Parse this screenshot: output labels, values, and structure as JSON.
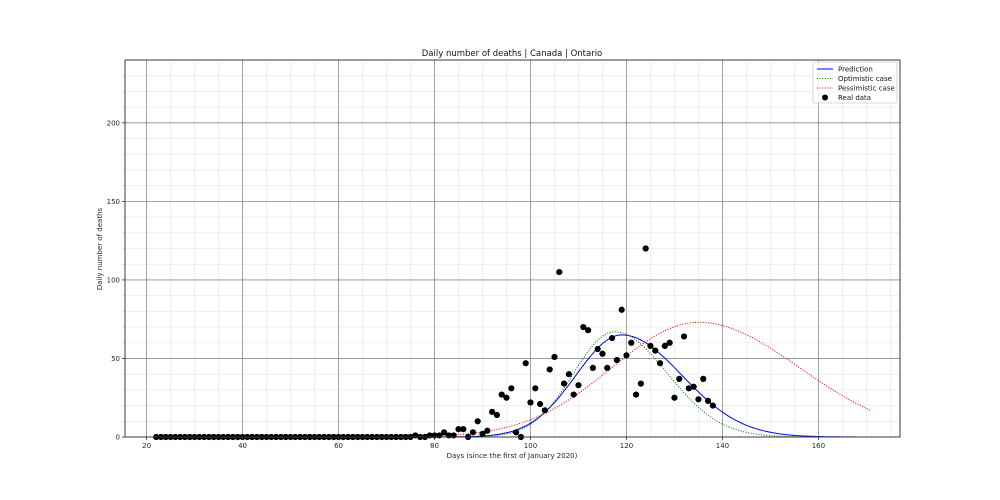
{
  "chart_data": {
    "type": "line",
    "title": "Daily number of deaths | Canada | Ontario",
    "xlabel": "Days (since the first of January 2020)",
    "ylabel": "Daily number of deaths",
    "xlim": [
      15.5,
      177
    ],
    "ylim": [
      0,
      240
    ],
    "xticks": [
      20,
      40,
      60,
      80,
      100,
      120,
      140,
      160
    ],
    "yticks": [
      0,
      50,
      100,
      150,
      200
    ],
    "grid": {
      "major": true,
      "minor": true
    },
    "legend_position": "upper right",
    "legend": [
      {
        "label": "Prediction",
        "style": "solid",
        "color": "#0000ff"
      },
      {
        "label": "Optimistic case",
        "style": "dotted",
        "color": "#008000"
      },
      {
        "label": "Pessimistic case",
        "style": "dotted",
        "color": "#ff0000"
      },
      {
        "label": "Real data",
        "style": "marker",
        "color": "#000000"
      }
    ],
    "series": [
      {
        "name": "Prediction",
        "type": "line",
        "color": "#0000ff",
        "model": {
          "peak_day": 119,
          "peak_value": 65,
          "sigma_left": 9.5,
          "sigma_right": 12.5
        },
        "x_range": [
          22,
          171
        ]
      },
      {
        "name": "Optimistic case",
        "type": "line",
        "color": "#008000",
        "model": {
          "peak_day": 117.5,
          "peak_value": 67,
          "sigma_left": 8.5,
          "sigma_right": 11
        },
        "x_range": [
          22,
          171
        ]
      },
      {
        "name": "Pessimistic case",
        "type": "line",
        "color": "#ff0000",
        "model": {
          "peak_day": 135,
          "peak_value": 73,
          "sigma_left": 18,
          "sigma_right": 21
        },
        "x_range": [
          22,
          171
        ]
      },
      {
        "name": "Real data",
        "type": "scatter",
        "color": "#000000",
        "x": [
          22,
          23,
          24,
          25,
          26,
          27,
          28,
          29,
          30,
          31,
          32,
          33,
          34,
          35,
          36,
          37,
          38,
          39,
          40,
          41,
          42,
          43,
          44,
          45,
          46,
          47,
          48,
          49,
          50,
          51,
          52,
          53,
          54,
          55,
          56,
          57,
          58,
          59,
          60,
          61,
          62,
          63,
          64,
          65,
          66,
          67,
          68,
          69,
          70,
          71,
          72,
          73,
          74,
          75,
          76,
          77,
          78,
          79,
          80,
          81,
          82,
          83,
          84,
          85,
          86,
          87,
          88,
          89,
          90,
          91,
          92,
          93,
          94,
          95,
          96,
          97,
          98,
          99,
          100,
          101,
          102,
          103,
          104,
          105,
          106,
          107,
          108,
          109,
          110,
          111,
          112,
          113,
          114,
          115,
          116,
          117,
          118,
          119,
          120,
          121,
          122,
          123,
          124,
          125,
          126,
          127,
          128,
          129,
          130,
          131,
          132,
          133,
          134,
          135,
          136,
          137,
          138
        ],
        "y": [
          0,
          0,
          0,
          0,
          0,
          0,
          0,
          0,
          0,
          0,
          0,
          0,
          0,
          0,
          0,
          0,
          0,
          0,
          0,
          0,
          0,
          0,
          0,
          0,
          0,
          0,
          0,
          0,
          0,
          0,
          0,
          0,
          0,
          0,
          0,
          0,
          0,
          0,
          0,
          0,
          0,
          0,
          0,
          0,
          0,
          0,
          0,
          0,
          0,
          0,
          0,
          0,
          0,
          0,
          1,
          0,
          0,
          1,
          1,
          1,
          3,
          1,
          1,
          5,
          5,
          0,
          3,
          10,
          2,
          4,
          16,
          14,
          27,
          25,
          31,
          3,
          0,
          47,
          22,
          31,
          21,
          17,
          43,
          51,
          105,
          34,
          40,
          27,
          33,
          70,
          68,
          44,
          56,
          53,
          44,
          63,
          49,
          81,
          52,
          60,
          27,
          34,
          120,
          58,
          55,
          47,
          58,
          60,
          25,
          37,
          64,
          31,
          32,
          24,
          37,
          23,
          20
        ]
      }
    ]
  }
}
